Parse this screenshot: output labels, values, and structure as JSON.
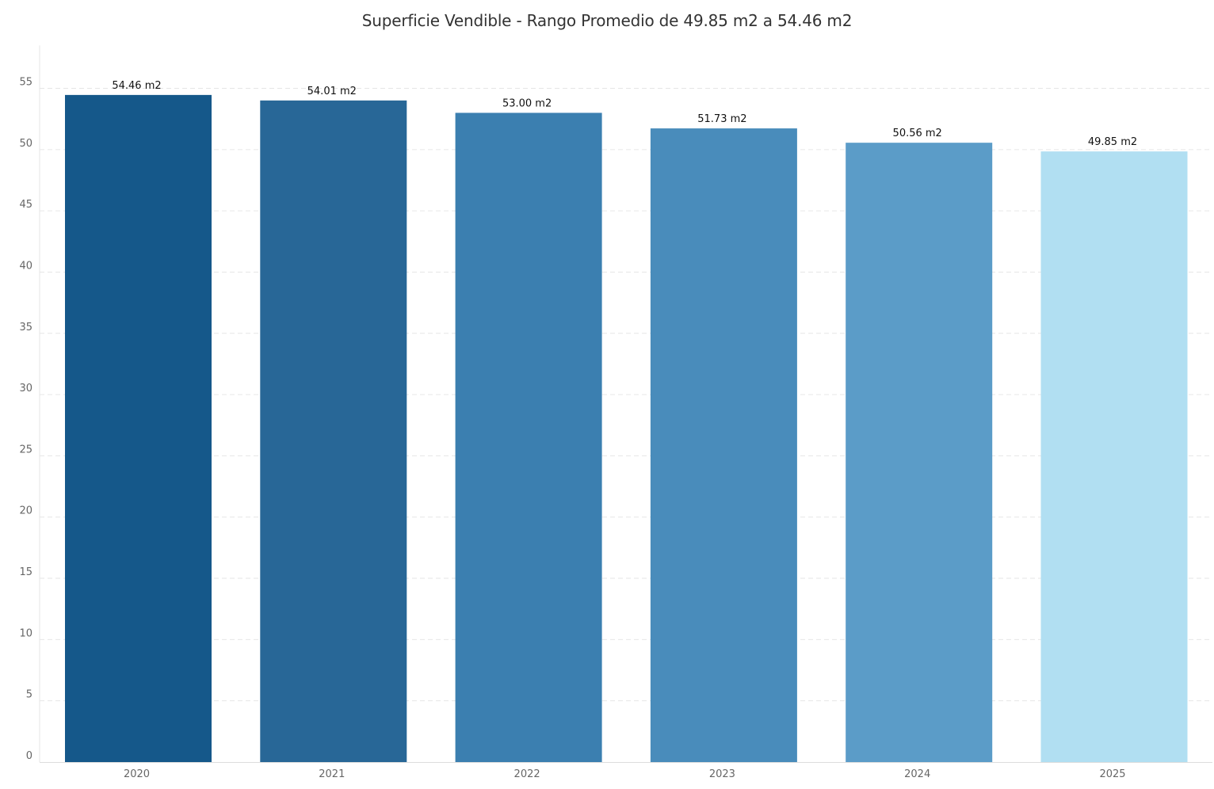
{
  "chart_data": {
    "type": "bar",
    "title": "Superficie Vendible - Rango Promedio de 49.85 m2 a 54.46 m2",
    "categories": [
      "2020",
      "2021",
      "2022",
      "2023",
      "2024",
      "2025"
    ],
    "values": [
      54.46,
      54.01,
      53.0,
      51.73,
      50.56,
      49.85
    ],
    "data_labels": [
      "54.46 m2",
      "54.01 m2",
      "53.00 m2",
      "51.73 m2",
      "50.56 m2",
      "49.85 m2"
    ],
    "colors": [
      "#15588a",
      "#286797",
      "#3b7fb0",
      "#498cbb",
      "#5b9cc8",
      "#b1dff2"
    ],
    "ylim": [
      0,
      58.5
    ],
    "yticks": [
      "0",
      "5",
      "10",
      "15",
      "20",
      "25",
      "30",
      "35",
      "40",
      "45",
      "50",
      "55"
    ],
    "ytick_values": [
      0,
      5,
      10,
      15,
      20,
      25,
      30,
      35,
      40,
      45,
      50,
      55
    ],
    "xlabel": "",
    "ylabel": "",
    "grid": true,
    "legend": "none"
  }
}
